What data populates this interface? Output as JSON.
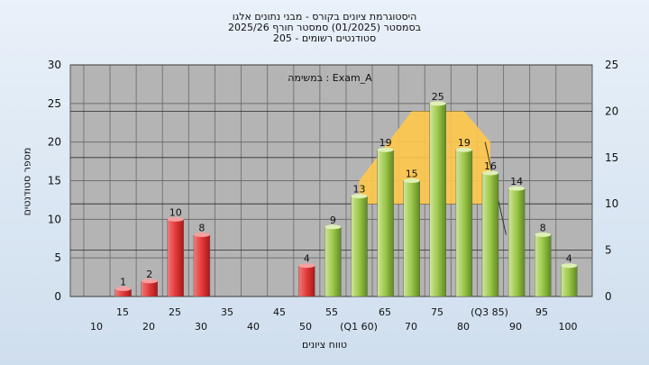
{
  "title_lines": [
    "היסטוגרמת ציונים בקורס - מבני נתונים אלגו",
    "בסמסטר  (01/2025)  סמסטר חורף 2025/26",
    "סטודנטים רשומים - 205"
  ],
  "chart_data": {
    "type": "bar",
    "annotation": "במשימה : Exam_A",
    "xlabel": "טווח ציונים",
    "ylabel": "מספר סטודנטים",
    "ylim": [
      0,
      30
    ],
    "yticks": [
      0,
      5,
      10,
      15,
      20,
      25,
      30
    ],
    "y2lim": [
      0,
      25
    ],
    "y2ticks": [
      0,
      5,
      10,
      15,
      20,
      25
    ],
    "grid": true,
    "legend": "none",
    "categories": [
      10,
      15,
      20,
      25,
      30,
      35,
      40,
      45,
      50,
      55,
      60,
      65,
      70,
      75,
      80,
      85,
      90,
      95,
      100
    ],
    "bar_ticks_row1": [
      "15",
      "25",
      "35",
      "45",
      "55",
      "65",
      "75",
      "(Q3 85)",
      "95"
    ],
    "bar_ticks_row2": [
      "10",
      "20",
      "30",
      "40",
      "50",
      "(Q1 60)",
      "70",
      "80",
      "90",
      "100"
    ],
    "bars": [
      {
        "x": 15,
        "value": 1,
        "label": "1",
        "color": "red"
      },
      {
        "x": 20,
        "value": 2,
        "label": "2",
        "color": "red"
      },
      {
        "x": 25,
        "value": 10,
        "label": "10",
        "color": "red"
      },
      {
        "x": 30,
        "value": 8,
        "label": "8",
        "color": "red"
      },
      {
        "x": 50,
        "value": 4,
        "label": "4",
        "color": "red"
      },
      {
        "x": 55,
        "value": 9,
        "label": "9",
        "color": "green"
      },
      {
        "x": 60,
        "value": 13,
        "label": "13",
        "color": "green"
      },
      {
        "x": 65,
        "value": 19,
        "label": "19",
        "color": "green"
      },
      {
        "x": 70,
        "value": 15,
        "label": "15",
        "color": "green"
      },
      {
        "x": 75,
        "value": 25,
        "label": "25",
        "color": "green"
      },
      {
        "x": 80,
        "value": 19,
        "label": "19",
        "color": "green"
      },
      {
        "x": 85,
        "value": 16,
        "label": "16",
        "color": "green"
      },
      {
        "x": 90,
        "value": 14,
        "label": "14",
        "color": "green"
      },
      {
        "x": 95,
        "value": 8,
        "label": "8",
        "color": "green"
      },
      {
        "x": 100,
        "value": 4,
        "label": "4",
        "color": "green"
      }
    ],
    "distribution_band": [
      {
        "x": 60,
        "y": 15
      },
      {
        "x": 70,
        "y": 24
      },
      {
        "x": 80,
        "y": 24
      },
      {
        "x": 85,
        "y": 20
      },
      {
        "x": 85,
        "y": 12
      },
      {
        "x": 60,
        "y": 12
      }
    ],
    "reference_line": [
      {
        "x": 84,
        "y": 20
      },
      {
        "x": 88,
        "y": 8
      }
    ],
    "colors": {
      "plot_bg": "#b4b4b4",
      "red_bar": "#e23a3a",
      "green_bar": "#9bc74a",
      "band": "#ffc84a"
    }
  }
}
